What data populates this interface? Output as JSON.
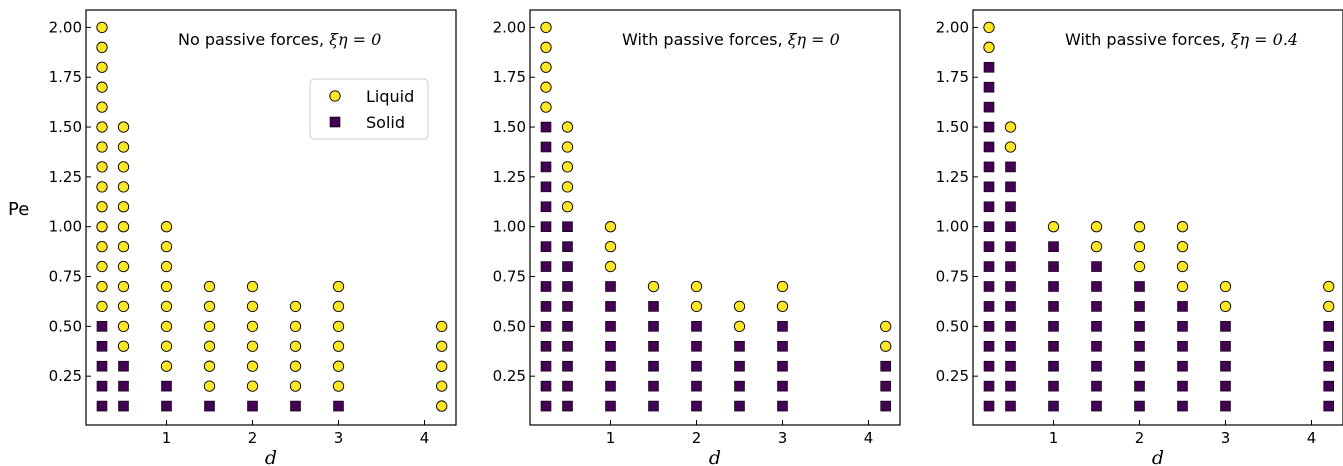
{
  "figure": {
    "ylabel": "Pe"
  },
  "colors": {
    "liquid": "#fde725",
    "solid": "#440154",
    "edge": "#000000"
  },
  "legend": {
    "liquid_label": "Liquid",
    "solid_label": "Solid",
    "location": "upper right (first panel)"
  },
  "chart_data": [
    {
      "type": "scatter",
      "title_text": "No passive forces, ",
      "title_math": "ξη = 0",
      "xlabel": "d",
      "ylabel": "Pe",
      "xticks": [
        "1",
        "2",
        "3",
        "4"
      ],
      "yticks": [
        "0.25",
        "0.50",
        "0.75",
        "1.00",
        "1.25",
        "1.50",
        "1.75",
        "2.00"
      ],
      "xlim": [
        0.15,
        4.45
      ],
      "ylim": [
        0.0,
        2.1
      ],
      "series": [
        {
          "name": "Liquid",
          "marker": "circle",
          "points": [
            [
              0.25,
              0.6
            ],
            [
              0.25,
              0.7
            ],
            [
              0.25,
              0.8
            ],
            [
              0.25,
              0.9
            ],
            [
              0.25,
              1.0
            ],
            [
              0.25,
              1.1
            ],
            [
              0.25,
              1.2
            ],
            [
              0.25,
              1.3
            ],
            [
              0.25,
              1.4
            ],
            [
              0.25,
              1.5
            ],
            [
              0.25,
              1.6
            ],
            [
              0.25,
              1.7
            ],
            [
              0.25,
              1.8
            ],
            [
              0.25,
              1.9
            ],
            [
              0.25,
              2.0
            ],
            [
              0.5,
              0.4
            ],
            [
              0.5,
              0.5
            ],
            [
              0.5,
              0.6
            ],
            [
              0.5,
              0.7
            ],
            [
              0.5,
              0.8
            ],
            [
              0.5,
              0.9
            ],
            [
              0.5,
              1.0
            ],
            [
              0.5,
              1.1
            ],
            [
              0.5,
              1.2
            ],
            [
              0.5,
              1.3
            ],
            [
              0.5,
              1.4
            ],
            [
              0.5,
              1.5
            ],
            [
              1,
              0.3
            ],
            [
              1,
              0.4
            ],
            [
              1,
              0.5
            ],
            [
              1,
              0.6
            ],
            [
              1,
              0.7
            ],
            [
              1,
              0.8
            ],
            [
              1,
              0.9
            ],
            [
              1,
              1.0
            ],
            [
              1.5,
              0.2
            ],
            [
              1.5,
              0.3
            ],
            [
              1.5,
              0.4
            ],
            [
              1.5,
              0.5
            ],
            [
              1.5,
              0.6
            ],
            [
              1.5,
              0.7
            ],
            [
              2,
              0.2
            ],
            [
              2,
              0.3
            ],
            [
              2,
              0.4
            ],
            [
              2,
              0.5
            ],
            [
              2,
              0.6
            ],
            [
              2,
              0.7
            ],
            [
              2.5,
              0.2
            ],
            [
              2.5,
              0.3
            ],
            [
              2.5,
              0.4
            ],
            [
              2.5,
              0.5
            ],
            [
              2.5,
              0.6
            ],
            [
              3,
              0.2
            ],
            [
              3,
              0.3
            ],
            [
              3,
              0.4
            ],
            [
              3,
              0.5
            ],
            [
              3,
              0.6
            ],
            [
              3,
              0.7
            ],
            [
              4.2,
              0.1
            ],
            [
              4.2,
              0.2
            ],
            [
              4.2,
              0.3
            ],
            [
              4.2,
              0.4
            ],
            [
              4.2,
              0.5
            ]
          ]
        },
        {
          "name": "Solid",
          "marker": "square",
          "points": [
            [
              0.25,
              0.1
            ],
            [
              0.25,
              0.2
            ],
            [
              0.25,
              0.3
            ],
            [
              0.25,
              0.4
            ],
            [
              0.25,
              0.5
            ],
            [
              0.5,
              0.1
            ],
            [
              0.5,
              0.2
            ],
            [
              0.5,
              0.3
            ],
            [
              1,
              0.1
            ],
            [
              1,
              0.2
            ],
            [
              1.5,
              0.1
            ],
            [
              2,
              0.1
            ],
            [
              2.5,
              0.1
            ],
            [
              3,
              0.1
            ]
          ]
        }
      ]
    },
    {
      "type": "scatter",
      "title_text": "With passive forces, ",
      "title_math": "ξη = 0",
      "xlabel": "d",
      "ylabel": "Pe",
      "xticks": [
        "1",
        "2",
        "3",
        "4"
      ],
      "yticks": [
        "0.25",
        "0.50",
        "0.75",
        "1.00",
        "1.25",
        "1.50",
        "1.75",
        "2.00"
      ],
      "xlim": [
        0.15,
        4.45
      ],
      "ylim": [
        0.0,
        2.1
      ],
      "series": [
        {
          "name": "Liquid",
          "marker": "circle",
          "points": [
            [
              0.25,
              1.6
            ],
            [
              0.25,
              1.7
            ],
            [
              0.25,
              1.8
            ],
            [
              0.25,
              1.9
            ],
            [
              0.25,
              2.0
            ],
            [
              0.5,
              1.1
            ],
            [
              0.5,
              1.2
            ],
            [
              0.5,
              1.3
            ],
            [
              0.5,
              1.4
            ],
            [
              0.5,
              1.5
            ],
            [
              1,
              0.8
            ],
            [
              1,
              0.9
            ],
            [
              1,
              1.0
            ],
            [
              1.5,
              0.7
            ],
            [
              2,
              0.6
            ],
            [
              2,
              0.7
            ],
            [
              2.5,
              0.5
            ],
            [
              2.5,
              0.6
            ],
            [
              3,
              0.6
            ],
            [
              3,
              0.7
            ],
            [
              4.2,
              0.4
            ],
            [
              4.2,
              0.5
            ]
          ]
        },
        {
          "name": "Solid",
          "marker": "square",
          "points": [
            [
              0.25,
              0.1
            ],
            [
              0.25,
              0.2
            ],
            [
              0.25,
              0.3
            ],
            [
              0.25,
              0.4
            ],
            [
              0.25,
              0.5
            ],
            [
              0.25,
              0.6
            ],
            [
              0.25,
              0.7
            ],
            [
              0.25,
              0.8
            ],
            [
              0.25,
              0.9
            ],
            [
              0.25,
              1.0
            ],
            [
              0.25,
              1.1
            ],
            [
              0.25,
              1.2
            ],
            [
              0.25,
              1.3
            ],
            [
              0.25,
              1.4
            ],
            [
              0.25,
              1.5
            ],
            [
              0.5,
              0.1
            ],
            [
              0.5,
              0.2
            ],
            [
              0.5,
              0.3
            ],
            [
              0.5,
              0.4
            ],
            [
              0.5,
              0.5
            ],
            [
              0.5,
              0.6
            ],
            [
              0.5,
              0.7
            ],
            [
              0.5,
              0.8
            ],
            [
              0.5,
              0.9
            ],
            [
              0.5,
              1.0
            ],
            [
              1,
              0.1
            ],
            [
              1,
              0.2
            ],
            [
              1,
              0.3
            ],
            [
              1,
              0.4
            ],
            [
              1,
              0.5
            ],
            [
              1,
              0.6
            ],
            [
              1,
              0.7
            ],
            [
              1.5,
              0.1
            ],
            [
              1.5,
              0.2
            ],
            [
              1.5,
              0.3
            ],
            [
              1.5,
              0.4
            ],
            [
              1.5,
              0.5
            ],
            [
              1.5,
              0.6
            ],
            [
              2,
              0.1
            ],
            [
              2,
              0.2
            ],
            [
              2,
              0.3
            ],
            [
              2,
              0.4
            ],
            [
              2,
              0.5
            ],
            [
              2.5,
              0.1
            ],
            [
              2.5,
              0.2
            ],
            [
              2.5,
              0.3
            ],
            [
              2.5,
              0.4
            ],
            [
              3,
              0.1
            ],
            [
              3,
              0.2
            ],
            [
              3,
              0.3
            ],
            [
              3,
              0.4
            ],
            [
              3,
              0.5
            ],
            [
              4.2,
              0.1
            ],
            [
              4.2,
              0.2
            ],
            [
              4.2,
              0.3
            ]
          ]
        }
      ]
    },
    {
      "type": "scatter",
      "title_text": "With passive forces, ",
      "title_math": "ξη = 0.4",
      "xlabel": "d",
      "ylabel": "Pe",
      "xticks": [
        "1",
        "2",
        "3",
        "4"
      ],
      "yticks": [
        "0.25",
        "0.50",
        "0.75",
        "1.00",
        "1.25",
        "1.50",
        "1.75",
        "2.00"
      ],
      "xlim": [
        0.15,
        4.45
      ],
      "ylim": [
        0.0,
        2.1
      ],
      "series": [
        {
          "name": "Liquid",
          "marker": "circle",
          "points": [
            [
              0.25,
              1.9
            ],
            [
              0.25,
              2.0
            ],
            [
              0.5,
              1.4
            ],
            [
              0.5,
              1.5
            ],
            [
              1,
              1.0
            ],
            [
              1.5,
              0.9
            ],
            [
              1.5,
              1.0
            ],
            [
              2,
              0.8
            ],
            [
              2,
              0.9
            ],
            [
              2,
              1.0
            ],
            [
              2.5,
              0.7
            ],
            [
              2.5,
              0.8
            ],
            [
              2.5,
              0.9
            ],
            [
              2.5,
              1.0
            ],
            [
              3,
              0.6
            ],
            [
              3,
              0.7
            ],
            [
              4.2,
              0.6
            ],
            [
              4.2,
              0.7
            ]
          ]
        },
        {
          "name": "Solid",
          "marker": "square",
          "points": [
            [
              0.25,
              0.1
            ],
            [
              0.25,
              0.2
            ],
            [
              0.25,
              0.3
            ],
            [
              0.25,
              0.4
            ],
            [
              0.25,
              0.5
            ],
            [
              0.25,
              0.6
            ],
            [
              0.25,
              0.7
            ],
            [
              0.25,
              0.8
            ],
            [
              0.25,
              0.9
            ],
            [
              0.25,
              1.0
            ],
            [
              0.25,
              1.1
            ],
            [
              0.25,
              1.2
            ],
            [
              0.25,
              1.3
            ],
            [
              0.25,
              1.4
            ],
            [
              0.25,
              1.5
            ],
            [
              0.25,
              1.6
            ],
            [
              0.25,
              1.7
            ],
            [
              0.25,
              1.8
            ],
            [
              0.5,
              0.1
            ],
            [
              0.5,
              0.2
            ],
            [
              0.5,
              0.3
            ],
            [
              0.5,
              0.4
            ],
            [
              0.5,
              0.5
            ],
            [
              0.5,
              0.6
            ],
            [
              0.5,
              0.7
            ],
            [
              0.5,
              0.8
            ],
            [
              0.5,
              0.9
            ],
            [
              0.5,
              1.0
            ],
            [
              0.5,
              1.1
            ],
            [
              0.5,
              1.2
            ],
            [
              0.5,
              1.3
            ],
            [
              1,
              0.1
            ],
            [
              1,
              0.2
            ],
            [
              1,
              0.3
            ],
            [
              1,
              0.4
            ],
            [
              1,
              0.5
            ],
            [
              1,
              0.6
            ],
            [
              1,
              0.7
            ],
            [
              1,
              0.8
            ],
            [
              1,
              0.9
            ],
            [
              1.5,
              0.1
            ],
            [
              1.5,
              0.2
            ],
            [
              1.5,
              0.3
            ],
            [
              1.5,
              0.4
            ],
            [
              1.5,
              0.5
            ],
            [
              1.5,
              0.6
            ],
            [
              1.5,
              0.7
            ],
            [
              1.5,
              0.8
            ],
            [
              2,
              0.1
            ],
            [
              2,
              0.2
            ],
            [
              2,
              0.3
            ],
            [
              2,
              0.4
            ],
            [
              2,
              0.5
            ],
            [
              2,
              0.6
            ],
            [
              2,
              0.7
            ],
            [
              2.5,
              0.1
            ],
            [
              2.5,
              0.2
            ],
            [
              2.5,
              0.3
            ],
            [
              2.5,
              0.4
            ],
            [
              2.5,
              0.5
            ],
            [
              2.5,
              0.6
            ],
            [
              3,
              0.1
            ],
            [
              3,
              0.2
            ],
            [
              3,
              0.3
            ],
            [
              3,
              0.4
            ],
            [
              3,
              0.5
            ],
            [
              4.2,
              0.1
            ],
            [
              4.2,
              0.2
            ],
            [
              4.2,
              0.3
            ],
            [
              4.2,
              0.4
            ],
            [
              4.2,
              0.5
            ]
          ]
        }
      ]
    }
  ]
}
